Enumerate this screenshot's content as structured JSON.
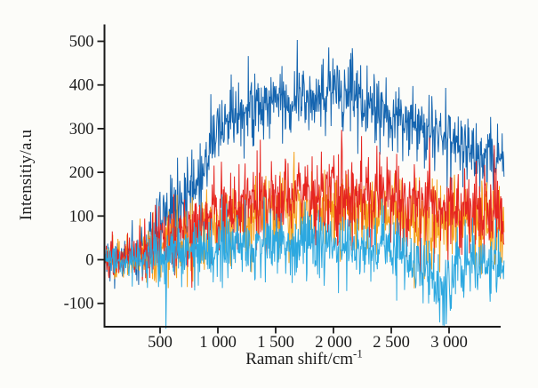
{
  "page": {
    "background": "#fcfcf9",
    "axis_color": "#1a1a1a"
  },
  "figure": {
    "y_axis": {
      "label": "Intensitiy/a.u"
    },
    "x_axis": {
      "label_base": "Raman shift/cm",
      "label_exp": "-1"
    }
  },
  "chart_data": {
    "type": "line",
    "title": "",
    "xlabel": "Raman shift/cm^-1",
    "ylabel": "Intensitiy/a.u",
    "xlim": [
      15,
      3475
    ],
    "ylim": [
      -155,
      540
    ],
    "grid": false,
    "legend": "none",
    "x_ticks": [
      500,
      1000,
      1500,
      2000,
      2500,
      3000
    ],
    "x_tick_labels": [
      "500",
      "1 000",
      "1 500",
      "2 000",
      "2 500",
      "3 000"
    ],
    "y_ticks": [
      500,
      400,
      300,
      200,
      100,
      0,
      -100
    ],
    "noise_seed": 7,
    "x_step": 4,
    "note": "Four heavily noisy Raman spectra; envelope = [raman shift cm^-1, mean intensity a.u.], sigma = noise amplitude",
    "series": [
      {
        "name": "spectrum-dark-blue",
        "color": "#1565b0",
        "sigma": 75,
        "spike_p": 0.02,
        "spike_amp": 95,
        "envelope": [
          [
            15,
            0
          ],
          [
            250,
            8
          ],
          [
            400,
            40
          ],
          [
            550,
            95
          ],
          [
            700,
            150
          ],
          [
            850,
            185
          ],
          [
            900,
            215
          ],
          [
            960,
            290
          ],
          [
            1050,
            320
          ],
          [
            1200,
            345
          ],
          [
            1500,
            370
          ],
          [
            1800,
            378
          ],
          [
            2150,
            375
          ],
          [
            2400,
            345
          ],
          [
            2600,
            315
          ],
          [
            2800,
            290
          ],
          [
            3000,
            268
          ],
          [
            3200,
            252
          ],
          [
            3475,
            235
          ]
        ]
      },
      {
        "name": "spectrum-orange",
        "color": "#f5a11c",
        "sigma": 80,
        "spike_p": 0.015,
        "spike_amp": -110,
        "envelope": [
          [
            15,
            0
          ],
          [
            250,
            5
          ],
          [
            500,
            30
          ],
          [
            800,
            60
          ],
          [
            1000,
            85
          ],
          [
            1300,
            105
          ],
          [
            1700,
            115
          ],
          [
            2100,
            120
          ],
          [
            2500,
            110
          ],
          [
            2900,
            85
          ],
          [
            3200,
            80
          ],
          [
            3475,
            70
          ]
        ]
      },
      {
        "name": "spectrum-red",
        "color": "#e62520",
        "sigma": 88,
        "spike_p": 0.02,
        "spike_amp": 105,
        "envelope": [
          [
            15,
            0
          ],
          [
            250,
            8
          ],
          [
            500,
            40
          ],
          [
            800,
            75
          ],
          [
            1000,
            110
          ],
          [
            1300,
            135
          ],
          [
            1600,
            142
          ],
          [
            2000,
            150
          ],
          [
            2300,
            150
          ],
          [
            2600,
            140
          ],
          [
            2900,
            115
          ],
          [
            3100,
            108
          ],
          [
            3475,
            92
          ]
        ]
      },
      {
        "name": "spectrum-cyan",
        "color": "#2ca8e0",
        "sigma": 68,
        "spike_p": 0.02,
        "spike_amp": -95,
        "envelope": [
          [
            15,
            0
          ],
          [
            300,
            0
          ],
          [
            600,
            18
          ],
          [
            1000,
            30
          ],
          [
            1400,
            40
          ],
          [
            1900,
            42
          ],
          [
            2300,
            32
          ],
          [
            2600,
            15
          ],
          [
            2800,
            -15
          ],
          [
            2900,
            -55
          ],
          [
            2980,
            -60
          ],
          [
            3050,
            -35
          ],
          [
            3150,
            -12
          ],
          [
            3300,
            0
          ],
          [
            3475,
            -10
          ]
        ]
      }
    ]
  }
}
